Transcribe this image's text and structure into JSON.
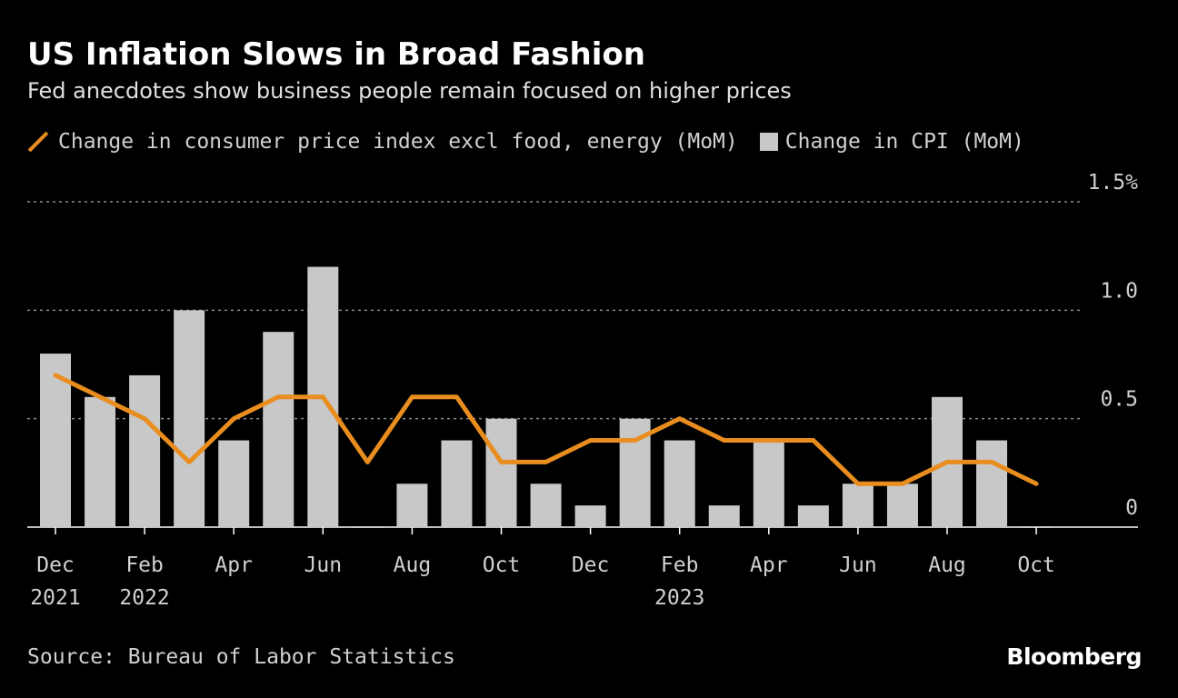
{
  "chart_data": {
    "type": "bar",
    "title": "US Inflation Slows in Broad Fashion",
    "subtitle": "Fed anecdotes show business people remain focused on higher prices",
    "categories": [
      "Dec 2021",
      "Jan 2022",
      "Feb 2022",
      "Mar 2022",
      "Apr 2022",
      "May 2022",
      "Jun 2022",
      "Jul 2022",
      "Aug 2022",
      "Sep 2022",
      "Oct 2022",
      "Nov 2022",
      "Dec 2022",
      "Jan 2023",
      "Feb 2023",
      "Mar 2023",
      "Apr 2023",
      "May 2023",
      "Jun 2023",
      "Jul 2023",
      "Aug 2023",
      "Sep 2023",
      "Oct 2023"
    ],
    "series": [
      {
        "name": "Change in CPI (MoM)",
        "kind": "bar",
        "color": "#c8c8c8",
        "values": [
          0.8,
          0.6,
          0.7,
          1.0,
          0.4,
          0.9,
          1.2,
          0.0,
          0.2,
          0.4,
          0.5,
          0.2,
          0.1,
          0.5,
          0.4,
          0.1,
          0.4,
          0.1,
          0.2,
          0.2,
          0.6,
          0.4,
          0.0
        ]
      },
      {
        "name": "Change in consumer price index excl food, energy (MoM)",
        "kind": "line",
        "color": "#e88d1e",
        "values": [
          0.7,
          0.6,
          0.5,
          0.3,
          0.5,
          0.6,
          0.6,
          0.3,
          0.6,
          0.6,
          0.3,
          0.3,
          0.4,
          0.4,
          0.5,
          0.4,
          0.4,
          0.4,
          0.2,
          0.2,
          0.3,
          0.3,
          0.2
        ]
      }
    ],
    "legend": [
      {
        "label": "Change in consumer price index excl food, energy (MoM)",
        "symbol": "line"
      },
      {
        "label": "Change in CPI (MoM)",
        "symbol": "box"
      }
    ],
    "x_ticks": [
      {
        "index": 0,
        "lines": [
          "Dec",
          "2021"
        ]
      },
      {
        "index": 2,
        "lines": [
          "Feb",
          "2022"
        ]
      },
      {
        "index": 4,
        "lines": [
          "Apr"
        ]
      },
      {
        "index": 6,
        "lines": [
          "Jun"
        ]
      },
      {
        "index": 8,
        "lines": [
          "Aug"
        ]
      },
      {
        "index": 10,
        "lines": [
          "Oct"
        ]
      },
      {
        "index": 12,
        "lines": [
          "Dec"
        ]
      },
      {
        "index": 14,
        "lines": [
          "Feb",
          "2023"
        ]
      },
      {
        "index": 16,
        "lines": [
          "Apr"
        ]
      },
      {
        "index": 18,
        "lines": [
          "Jun"
        ]
      },
      {
        "index": 20,
        "lines": [
          "Aug"
        ]
      },
      {
        "index": 22,
        "lines": [
          "Oct"
        ]
      }
    ],
    "y_ticks": [
      {
        "value": 0,
        "label": "0"
      },
      {
        "value": 0.5,
        "label": "0.5"
      },
      {
        "value": 1.0,
        "label": "1.0"
      },
      {
        "value": 1.5,
        "label": "1.5%"
      }
    ],
    "ylim": [
      0,
      1.5
    ],
    "grid": true,
    "source": "Source: Bureau of Labor Statistics",
    "brand": "Bloomberg"
  }
}
